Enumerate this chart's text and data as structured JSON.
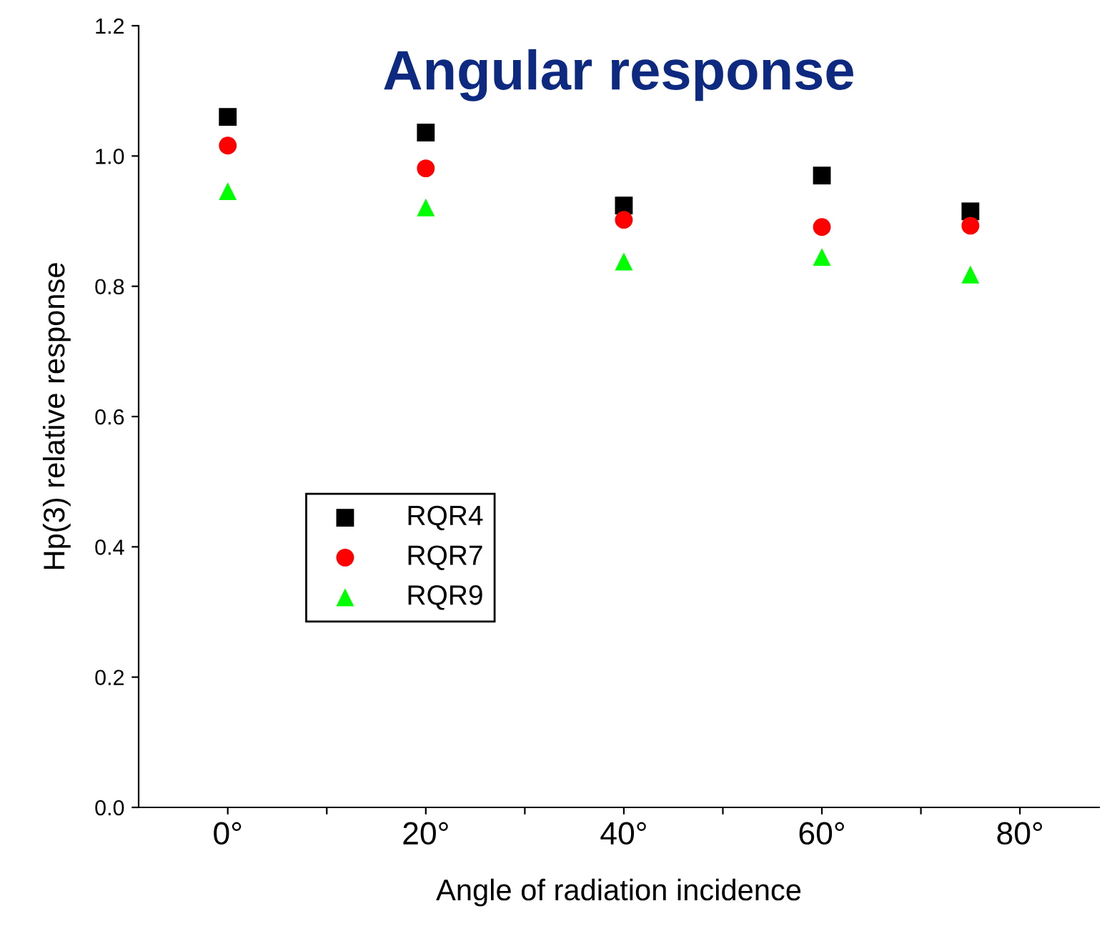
{
  "chart_data": {
    "type": "scatter",
    "title": "Angular response",
    "xlabel": "Angle of radiation incidence",
    "ylabel": "Hp(3) relative response",
    "x": [
      0,
      20,
      40,
      60,
      75
    ],
    "series": [
      {
        "name": "RQR4",
        "color": "#000000",
        "marker": "square",
        "values": [
          1.06,
          1.036,
          0.924,
          0.97,
          0.915
        ]
      },
      {
        "name": "RQR7",
        "color": "#ff0000",
        "marker": "circle",
        "values": [
          1.016,
          0.981,
          0.902,
          0.891,
          0.893
        ]
      },
      {
        "name": "RQR9",
        "color": "#00ff00",
        "marker": "triangle",
        "values": [
          0.946,
          0.921,
          0.838,
          0.845,
          0.818
        ]
      }
    ],
    "xlim": [
      -9,
      88
    ],
    "xticks": [
      {
        "value": 0,
        "label": "0°"
      },
      {
        "value": 10,
        "label": null
      },
      {
        "value": 20,
        "label": "20°"
      },
      {
        "value": 30,
        "label": null
      },
      {
        "value": 40,
        "label": "40°"
      },
      {
        "value": 50,
        "label": null
      },
      {
        "value": 60,
        "label": "60°"
      },
      {
        "value": 70,
        "label": null
      },
      {
        "value": 80,
        "label": "80°"
      }
    ],
    "ylim": [
      0,
      1.2
    ],
    "yticks": [
      {
        "value": 0,
        "label": "0.0"
      },
      {
        "value": 0.2,
        "label": "0.2"
      },
      {
        "value": 0.4,
        "label": "0.4"
      },
      {
        "value": 0.6,
        "label": "0.6"
      },
      {
        "value": 0.8,
        "label": "0.8"
      },
      {
        "value": 1.0,
        "label": "1.0"
      },
      {
        "value": 1.2,
        "label": "1.2"
      }
    ],
    "grid": false,
    "legend": "left"
  }
}
